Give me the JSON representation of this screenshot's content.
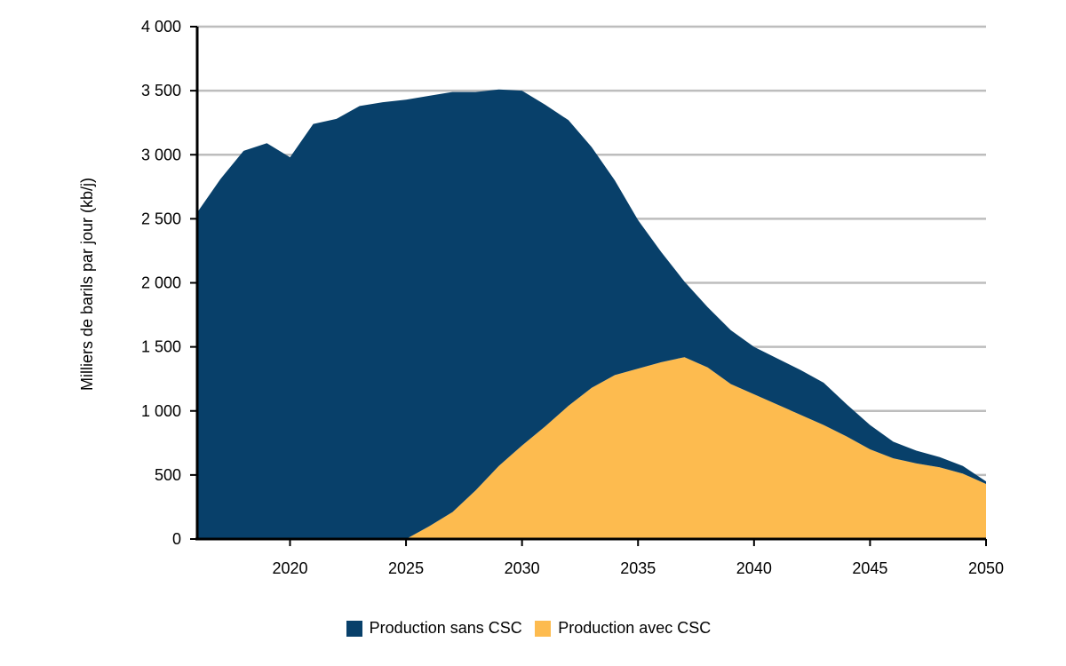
{
  "chart_data": {
    "type": "area",
    "stacked": true,
    "ylabel": "Milliers de barils par jour (kb/j)",
    "xlabel": "",
    "ylim": [
      0,
      4000
    ],
    "xlim": [
      2016,
      2050
    ],
    "y_ticks": [
      0,
      500,
      1000,
      1500,
      2000,
      2500,
      3000,
      3500,
      4000
    ],
    "y_tick_labels": [
      "0",
      "500",
      "1 000",
      "1 500",
      "2 000",
      "2 500",
      "3 000",
      "3 500",
      "4 000"
    ],
    "x_ticks": [
      2020,
      2025,
      2030,
      2035,
      2040,
      2045,
      2050
    ],
    "x_tick_labels": [
      "2020",
      "2025",
      "2030",
      "2035",
      "2040",
      "2045",
      "2050"
    ],
    "grid": "horizontal",
    "legend_position": "bottom",
    "x": [
      2016,
      2017,
      2018,
      2019,
      2020,
      2021,
      2022,
      2023,
      2024,
      2025,
      2026,
      2027,
      2028,
      2029,
      2030,
      2031,
      2032,
      2033,
      2034,
      2035,
      2036,
      2037,
      2038,
      2039,
      2040,
      2041,
      2042,
      2043,
      2044,
      2045,
      2046,
      2047,
      2048,
      2049,
      2050
    ],
    "series": [
      {
        "name": "Production avec CSC",
        "color": "#FDBB4F",
        "values": [
          0,
          0,
          0,
          0,
          0,
          0,
          0,
          0,
          0,
          0,
          100,
          210,
          380,
          570,
          730,
          880,
          1040,
          1180,
          1280,
          1330,
          1380,
          1420,
          1340,
          1210,
          1130,
          1050,
          970,
          890,
          800,
          700,
          630,
          590,
          560,
          510,
          430
        ]
      },
      {
        "name": "Production sans CSC",
        "color": "#08406A",
        "values": [
          2550,
          2810,
          3030,
          3090,
          2980,
          3240,
          3280,
          3380,
          3410,
          3430,
          3360,
          3280,
          3110,
          2940,
          2770,
          2510,
          2230,
          1880,
          1520,
          1160,
          860,
          590,
          470,
          420,
          370,
          360,
          350,
          330,
          250,
          190,
          130,
          100,
          80,
          60,
          20
        ]
      }
    ]
  },
  "legend": {
    "items": [
      {
        "label": "Production sans CSC",
        "color": "#08406A"
      },
      {
        "label": "Production avec CSC",
        "color": "#FDBB4F"
      }
    ]
  }
}
